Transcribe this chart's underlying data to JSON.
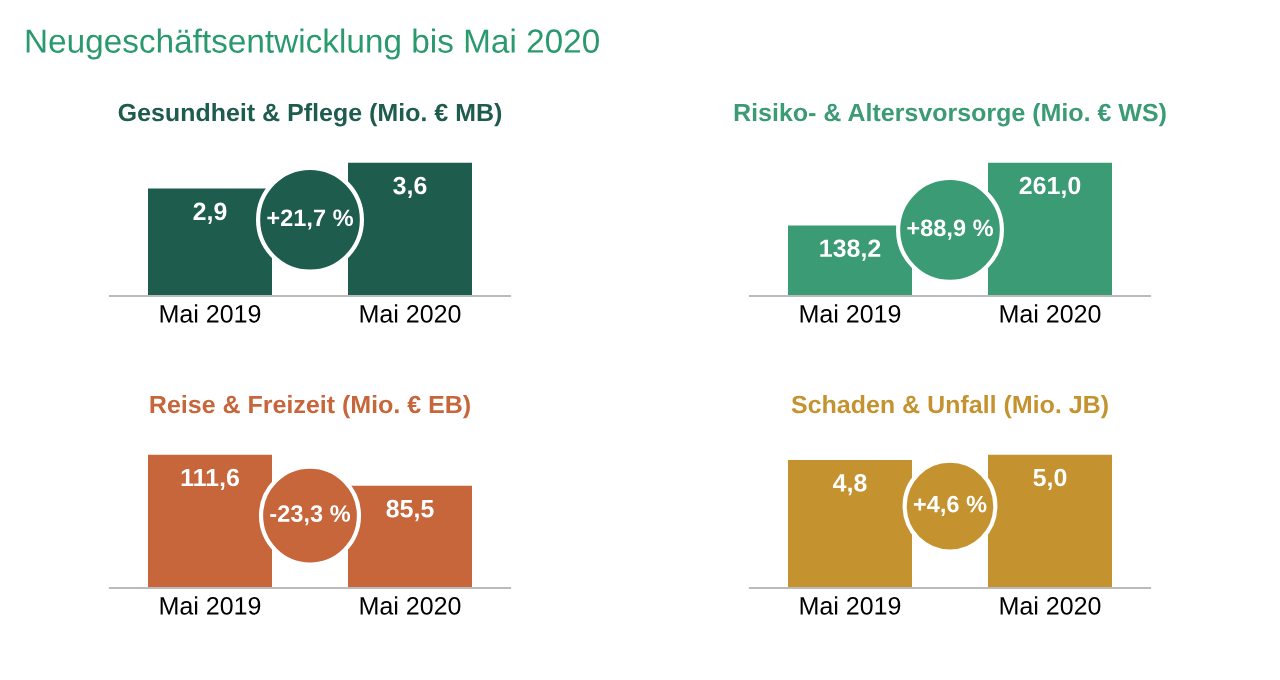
{
  "chart_data": [
    {
      "type": "bar",
      "title": "Gesundheit & Pflege (Mio. € MB)",
      "categories": [
        "Mai 2019",
        "Mai 2020"
      ],
      "values": [
        2.9,
        3.6
      ],
      "value_labels": [
        "2,9",
        "3,6"
      ],
      "color": "#1e5c4d",
      "annotations": [
        "Neugeschäftsentwicklung bis Mai 2020",
        "+21,7 %"
      ]
    },
    {
      "type": "bar",
      "title": "Risiko- & Altersvorsorge (Mio. € WS)",
      "categories": [
        "Mai 2019",
        "Mai 2020"
      ],
      "values": [
        138.2,
        261.0
      ],
      "value_labels": [
        "138,2",
        "261,0"
      ],
      "color": "#3a9b74",
      "annotations": [
        "+88,9 %"
      ]
    },
    {
      "type": "bar",
      "title": "Reise & Freizeit (Mio. € EB)",
      "categories": [
        "Mai 2019",
        "Mai 2020"
      ],
      "values": [
        111.6,
        85.5
      ],
      "value_labels": [
        "111,6",
        "85,5"
      ],
      "color": "#c7653b",
      "annotations": [
        "-23,3 %"
      ]
    },
    {
      "type": "bar",
      "title": "Schaden & Unfall (Mio. JB)",
      "categories": [
        "Mai 2019",
        "Mai 2020"
      ],
      "values": [
        4.8,
        5.0
      ],
      "value_labels": [
        "4,8",
        "5,0"
      ],
      "color": "#c4922f",
      "annotations": [
        "+4,6 %"
      ]
    }
  ]
}
